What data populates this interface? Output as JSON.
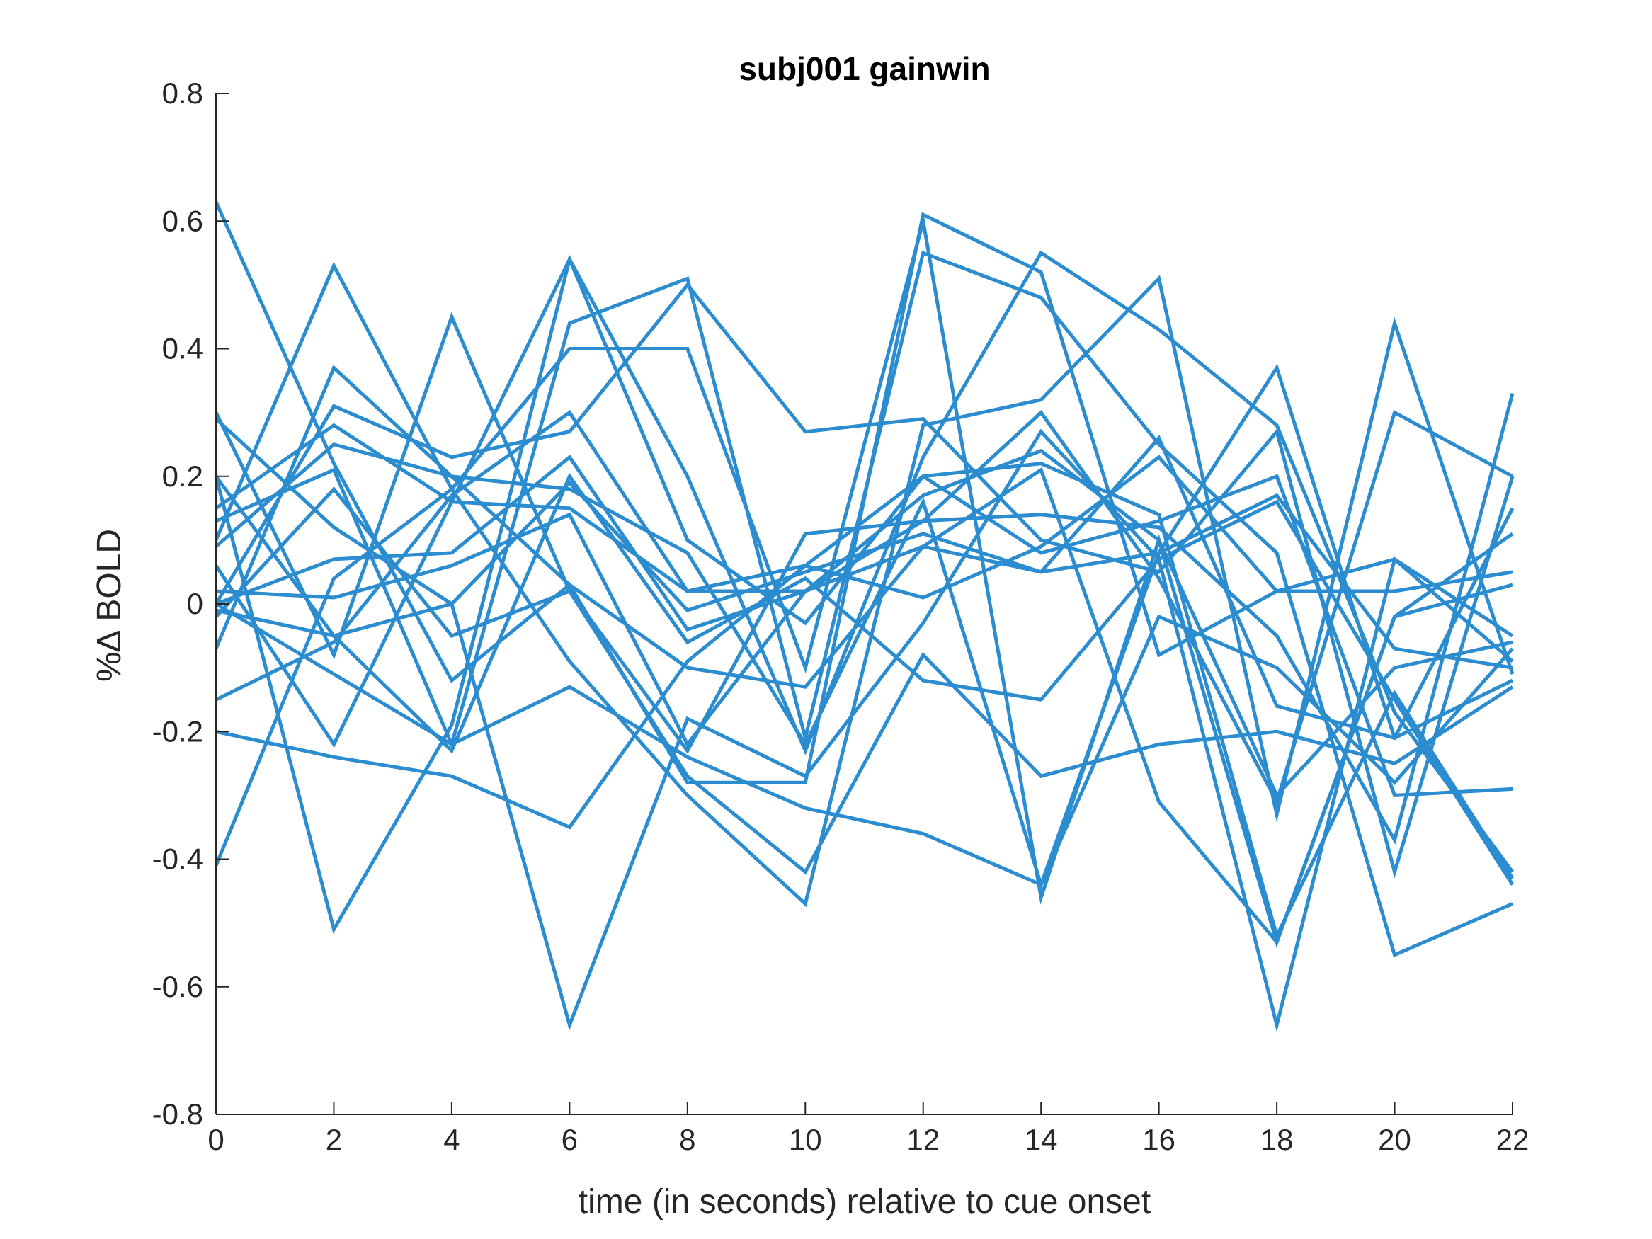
{
  "chart_data": {
    "type": "line",
    "title": "subj001 gainwin",
    "xlabel": "time (in seconds) relative to cue onset",
    "ylabel": "%∆ BOLD",
    "xlim": [
      0,
      22
    ],
    "ylim": [
      -0.8,
      0.8
    ],
    "xticks": [
      0,
      2,
      4,
      6,
      8,
      10,
      12,
      14,
      16,
      18,
      20,
      22
    ],
    "yticks": [
      -0.8,
      -0.6,
      -0.4,
      -0.2,
      0,
      0.2,
      0.4,
      0.6,
      0.8
    ],
    "grid": false,
    "line_color": "#2b8cd0",
    "x": [
      0,
      2,
      4,
      6,
      8,
      10,
      12,
      14,
      16,
      18,
      20,
      22
    ],
    "series": [
      {
        "values": [
          0.63,
          0.22,
          -0.12,
          0.03,
          -0.28,
          -0.28,
          0.61,
          0.52,
          -0.08,
          0.02,
          0.07,
          -0.05
        ]
      },
      {
        "values": [
          0.3,
          -0.08,
          0.45,
          0.02,
          -0.23,
          0.11,
          0.13,
          0.14,
          0.12,
          -0.05,
          -0.37,
          0.33
        ]
      },
      {
        "values": [
          0.2,
          -0.51,
          -0.19,
          0.54,
          0.2,
          -0.23,
          0.23,
          0.55,
          0.43,
          0.28,
          -0.17,
          -0.42
        ]
      },
      {
        "values": [
          0.1,
          0.53,
          0.18,
          -0.09,
          -0.3,
          -0.47,
          0.28,
          0.32,
          0.51,
          -0.33,
          0.44,
          -0.11
        ]
      },
      {
        "values": [
          0.0,
          0.31,
          0.23,
          0.27,
          0.5,
          0.27,
          0.29,
          0.1,
          0.05,
          0.27,
          -0.42,
          0.2
        ]
      },
      {
        "values": [
          -0.07,
          0.37,
          0.2,
          0.18,
          0.08,
          -0.22,
          0.16,
          -0.44,
          0.08,
          0.37,
          -0.21,
          -0.12
        ]
      },
      {
        "values": [
          0.13,
          0.21,
          -0.22,
          0.44,
          0.51,
          -0.21,
          0.55,
          0.48,
          0.25,
          0.08,
          -0.55,
          -0.47
        ]
      },
      {
        "values": [
          -0.41,
          0.04,
          0.18,
          0.4,
          0.4,
          -0.1,
          0.6,
          -0.46,
          0.1,
          -0.53,
          -0.02,
          0.03
        ]
      },
      {
        "values": [
          0.15,
          0.28,
          0.16,
          0.54,
          0.1,
          -0.03,
          0.2,
          0.08,
          0.13,
          0.2,
          -0.3,
          -0.29
        ]
      },
      {
        "values": [
          0.0,
          0.07,
          0.08,
          0.23,
          -0.04,
          0.02,
          0.09,
          0.05,
          0.26,
          -0.16,
          -0.21,
          0.15
        ]
      },
      {
        "values": [
          -0.2,
          -0.24,
          -0.27,
          -0.35,
          -0.09,
          0.06,
          0.01,
          0.09,
          0.23,
          0.02,
          0.02,
          0.05
        ]
      },
      {
        "values": [
          -0.15,
          -0.06,
          0.17,
          0.3,
          0.02,
          0.02,
          0.17,
          0.24,
          0.1,
          -0.3,
          -0.1,
          -0.06
        ]
      },
      {
        "values": [
          0.02,
          0.01,
          0.06,
          0.14,
          -0.22,
          0.02,
          0.13,
          0.3,
          0.04,
          -0.31,
          0.3,
          0.2
        ]
      },
      {
        "values": [
          0.06,
          -0.22,
          0.16,
          0.15,
          0.02,
          0.06,
          0.2,
          0.22,
          0.14,
          -0.52,
          -0.14,
          -0.43
        ]
      },
      {
        "values": [
          0.2,
          -0.05,
          -0.23,
          0.2,
          -0.06,
          0.04,
          -0.12,
          -0.15,
          0.07,
          -0.66,
          0.07,
          -0.09
        ]
      },
      {
        "values": [
          -0.02,
          0.18,
          -0.05,
          0.02,
          -0.27,
          -0.42,
          -0.08,
          -0.27,
          -0.22,
          -0.2,
          -0.25,
          -0.13
        ]
      },
      {
        "values": [
          0.29,
          0.12,
          0.0,
          -0.66,
          -0.18,
          -0.27,
          -0.03,
          0.27,
          0.07,
          0.16,
          -0.15,
          -0.44
        ]
      },
      {
        "values": [
          0.0,
          -0.11,
          -0.22,
          -0.13,
          -0.24,
          -0.32,
          -0.36,
          -0.44,
          -0.02,
          -0.1,
          -0.28,
          -0.07
        ]
      },
      {
        "values": [
          0.09,
          0.25,
          0.2,
          0.03,
          -0.1,
          -0.13,
          0.09,
          0.21,
          -0.31,
          -0.53,
          -0.02,
          0.11
        ]
      },
      {
        "values": [
          -0.01,
          -0.05,
          0.0,
          0.19,
          -0.01,
          0.05,
          0.11,
          0.05,
          0.08,
          0.17,
          -0.07,
          -0.1
        ]
      }
    ]
  }
}
